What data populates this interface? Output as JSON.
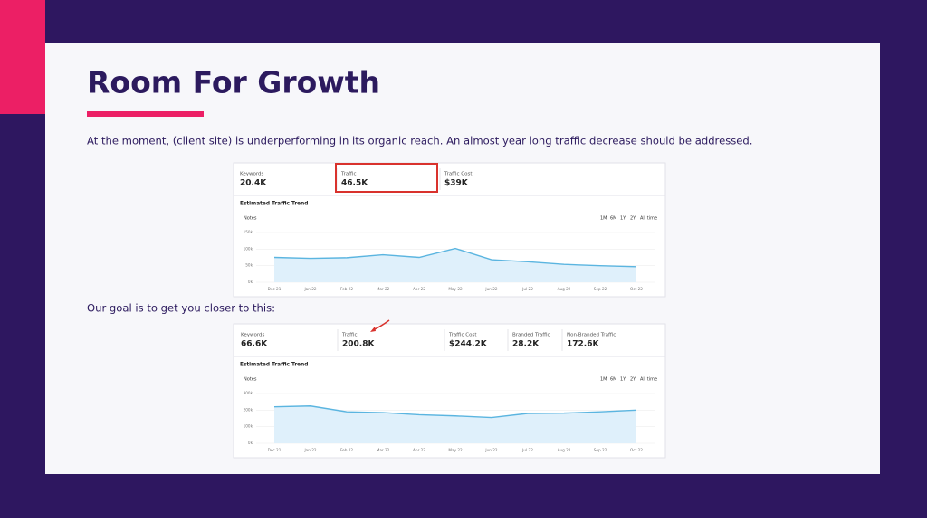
{
  "title": "Room For Growth",
  "intro": "At the moment, (client site) is underperforming in its organic reach. An almost year long traffic decrease should be addressed.",
  "goal": "Our goal is to get you closer to this:",
  "panels": [
    {
      "metrics": [
        {
          "label": "Keywords",
          "value": "20.4K"
        },
        {
          "label": "Traffic",
          "value": "46.5K"
        },
        {
          "label": "Traffic Cost",
          "value": "$39K"
        }
      ]
    },
    {
      "metrics": [
        {
          "label": "Keywords",
          "value": "66.6K"
        },
        {
          "label": "Traffic",
          "value": "200.8K"
        },
        {
          "label": "Traffic Cost",
          "value": "$244.2K"
        },
        {
          "label": "Branded Traffic",
          "value": "28.2K"
        },
        {
          "label": "Non-Branded Traffic",
          "value": "172.6K"
        }
      ]
    }
  ],
  "chart_data": [
    {
      "type": "line",
      "title": "Estimated Traffic Trend",
      "notes": "Notes",
      "ranges": [
        "1M",
        "6M",
        "1Y",
        "2Y",
        "All time"
      ],
      "categories": [
        "Dec 21",
        "Jan 22",
        "Feb 22",
        "Mar 22",
        "Apr 22",
        "May 22",
        "Jun 22",
        "Jul 22",
        "Aug 22",
        "Sep 22",
        "Oct 22"
      ],
      "ylim": [
        0,
        150000
      ],
      "yticks": [
        {
          "value": 0,
          "label": "0k"
        },
        {
          "value": 50000,
          "label": "50k"
        },
        {
          "value": 100000,
          "label": "100k"
        },
        {
          "value": 150000,
          "label": "150k"
        }
      ],
      "series": [
        {
          "name": "Traffic",
          "color": "#5bb5e0",
          "values": [
            75000,
            72000,
            74000,
            83000,
            75000,
            102000,
            68000,
            62000,
            54000,
            50000,
            47000
          ]
        }
      ]
    },
    {
      "type": "line",
      "title": "Estimated Traffic Trend",
      "notes": "Notes",
      "ranges": [
        "1M",
        "6M",
        "1Y",
        "2Y",
        "All time"
      ],
      "categories": [
        "Dec 21",
        "Jan 22",
        "Feb 22",
        "Mar 22",
        "Apr 22",
        "May 22",
        "Jun 22",
        "Jul 22",
        "Aug 22",
        "Sep 22",
        "Oct 22"
      ],
      "ylim": [
        0,
        300000
      ],
      "yticks": [
        {
          "value": 0,
          "label": "0k"
        },
        {
          "value": 100000,
          "label": "100k"
        },
        {
          "value": 200000,
          "label": "200k"
        },
        {
          "value": 300000,
          "label": "300k"
        }
      ],
      "series": [
        {
          "name": "Traffic",
          "color": "#5bb5e0",
          "values": [
            220000,
            225000,
            190000,
            185000,
            172000,
            165000,
            155000,
            180000,
            182000,
            190000,
            200000
          ]
        }
      ]
    }
  ]
}
